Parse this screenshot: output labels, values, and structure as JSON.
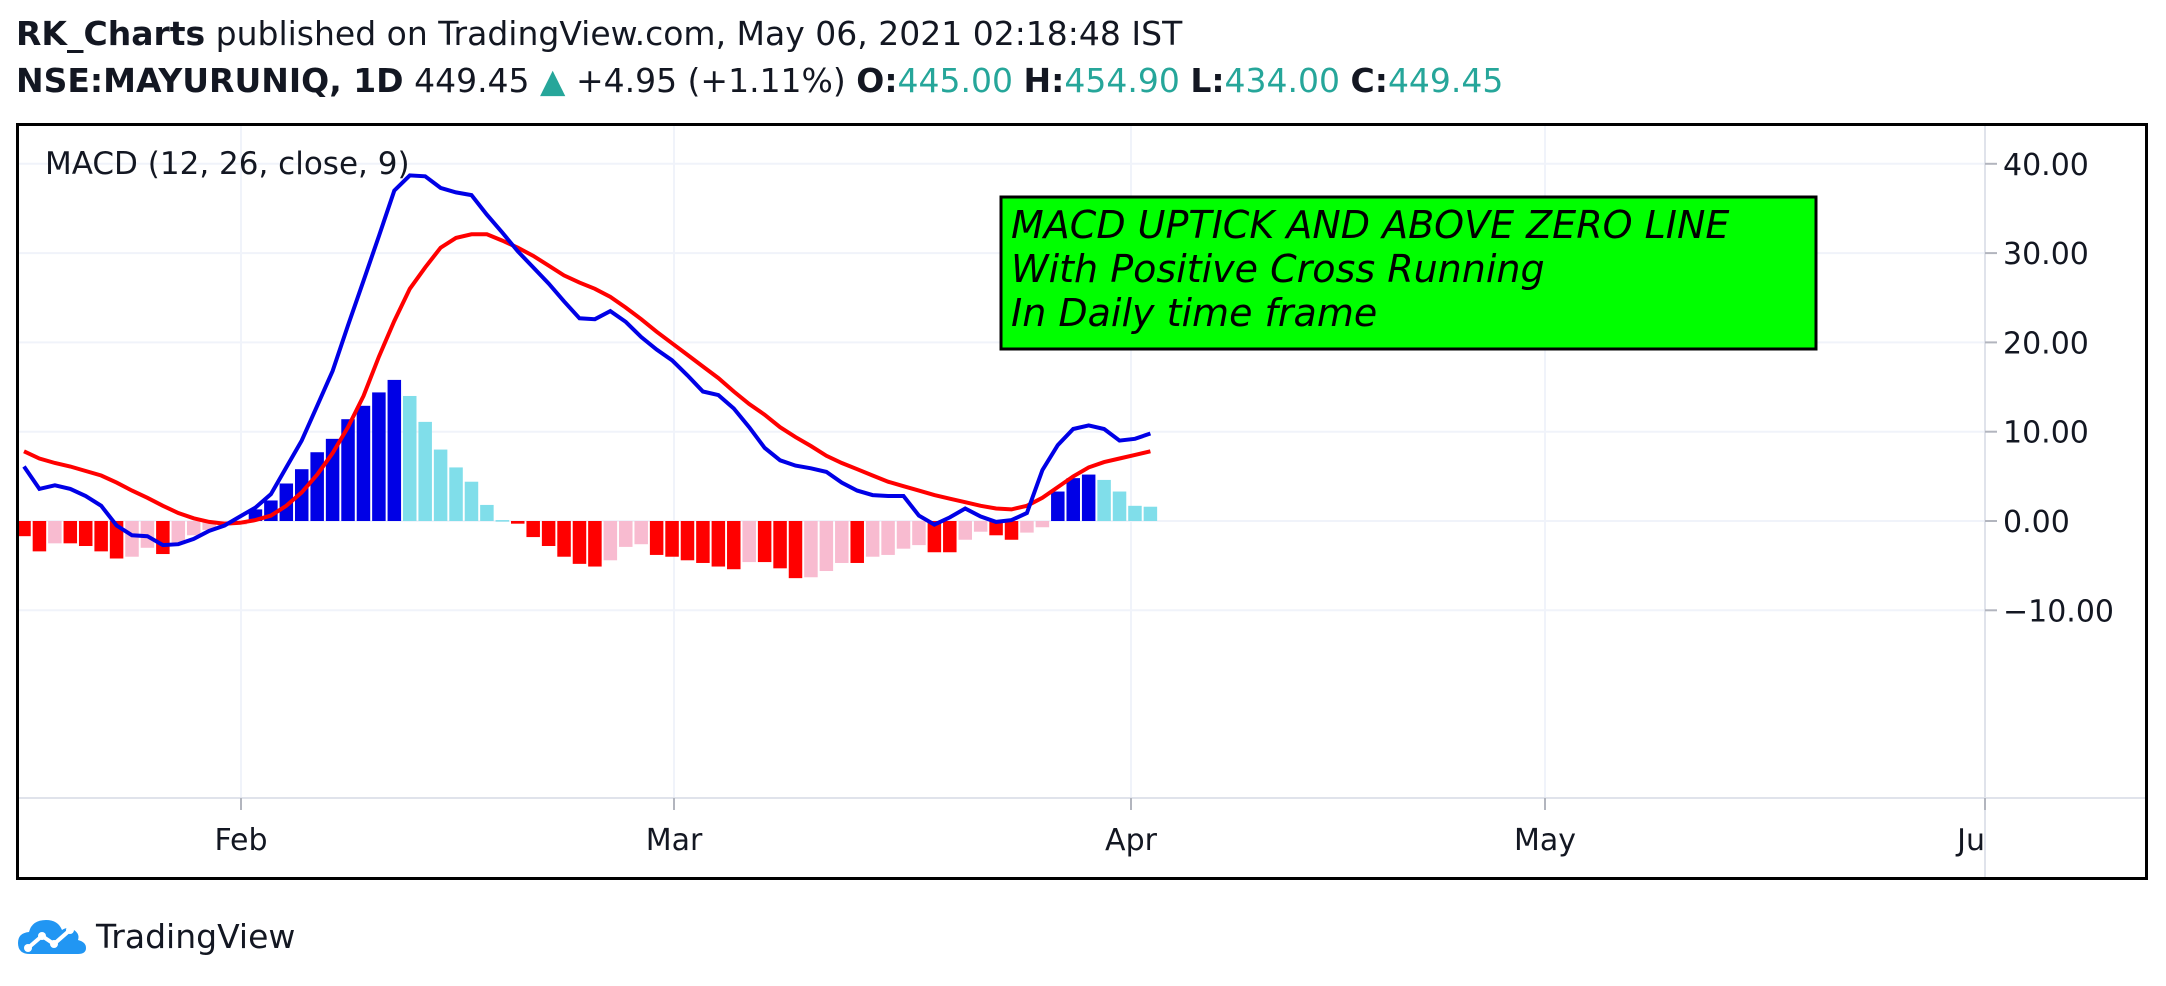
{
  "header": {
    "author": "RK_Charts",
    "published": "published on TradingView.com, May 06, 2021 02:18:48 IST",
    "symbol": "NSE:MAYURUNIQ, 1D",
    "price": "449.45",
    "change": "+4.95 (+1.11%)",
    "o_label": "O:",
    "o_value": "445.00",
    "h_label": "H:",
    "h_value": "454.90",
    "l_label": "L:",
    "l_value": "434.00",
    "c_label": "C:",
    "c_value": "449.45"
  },
  "indicator_label": "MACD (12, 26, close, 9)",
  "annotation": {
    "lines": [
      "MACD UPTICK AND ABOVE ZERO LINE",
      "With Positive Cross Running",
      "In Daily time frame"
    ],
    "background": "#00ff00"
  },
  "footer": {
    "brand": "TradingView"
  },
  "chart_data": {
    "type": "line",
    "x_labels": [
      "Feb",
      "Mar",
      "Apr",
      "May",
      "Ju"
    ],
    "y_ticks": [
      "40.00",
      "30.00",
      "20.00",
      "10.00",
      "0.00",
      "−10.00"
    ],
    "ylim": [
      -10,
      42
    ],
    "grid": true,
    "colors": {
      "macd": "#0000e6",
      "signal": "#ff0000",
      "hist_pos_rising": "#0000e6",
      "hist_pos_falling": "#80deea",
      "hist_neg_falling": "#ff0000",
      "hist_neg_rising": "#f8bbd0"
    },
    "series": [
      {
        "key": "macd",
        "values": [
          6.1,
          3.6,
          4.0,
          3.6,
          2.8,
          1.7,
          -0.5,
          -1.6,
          -1.7,
          -2.7,
          -2.6,
          -2.0,
          -1.1,
          -0.5,
          0.5,
          1.5,
          3.0,
          6.0,
          9.0,
          12.9,
          16.8,
          21.9,
          26.9,
          31.9,
          37.0,
          38.7,
          38.6,
          37.3,
          36.8,
          36.5,
          34.3,
          32.3,
          30.2,
          28.4,
          26.6,
          24.6,
          22.7,
          22.6,
          23.5,
          22.3,
          20.6,
          19.2,
          18.0,
          16.3,
          14.5,
          14.1,
          12.6,
          10.5,
          8.2,
          6.8,
          6.2,
          5.9,
          5.5,
          4.3,
          3.4,
          2.9,
          2.8,
          2.8,
          0.6,
          -0.4,
          0.4,
          1.4,
          0.5,
          -0.1,
          0.1,
          0.9,
          5.7,
          8.5,
          10.3,
          10.7,
          10.3,
          9.0,
          9.2,
          9.8
        ]
      },
      {
        "key": "signal",
        "values": [
          7.8,
          7.0,
          6.5,
          6.1,
          5.6,
          5.1,
          4.3,
          3.4,
          2.6,
          1.7,
          0.9,
          0.3,
          -0.1,
          -0.3,
          -0.2,
          0.1,
          0.6,
          1.7,
          3.2,
          5.2,
          7.6,
          10.5,
          14.0,
          18.4,
          22.4,
          26.0,
          28.4,
          30.6,
          31.7,
          32.1,
          32.1,
          31.4,
          30.6,
          29.7,
          28.6,
          27.5,
          26.7,
          26.0,
          25.1,
          23.9,
          22.6,
          21.2,
          19.9,
          18.6,
          17.3,
          16.0,
          14.5,
          13.1,
          11.9,
          10.5,
          9.4,
          8.4,
          7.3,
          6.5,
          5.8,
          5.1,
          4.4,
          3.9,
          3.4,
          2.9,
          2.5,
          2.1,
          1.7,
          1.4,
          1.3,
          1.7,
          2.6,
          3.8,
          5.0,
          6.0,
          6.6,
          7.0,
          7.4,
          7.8
        ]
      },
      {
        "key": "histogram",
        "values": [
          -1.7,
          -3.4,
          -2.5,
          -2.5,
          -2.8,
          -3.4,
          -4.2,
          -4.0,
          -3.0,
          -3.7,
          -2.6,
          -1.6,
          -1.0,
          -0.5,
          -0.4,
          1.3,
          2.3,
          4.2,
          5.8,
          7.7,
          9.2,
          11.4,
          12.9,
          14.4,
          15.8,
          14.0,
          11.1,
          8.0,
          6.0,
          4.4,
          1.8,
          0.1,
          -0.3,
          -1.8,
          -2.8,
          -4.0,
          -4.8,
          -5.1,
          -4.4,
          -2.9,
          -2.6,
          -3.8,
          -4.0,
          -4.4,
          -4.7,
          -5.1,
          -5.4,
          -4.6,
          -4.6,
          -5.3,
          -6.4,
          -6.3,
          -5.6,
          -4.7,
          -4.7,
          -4.0,
          -3.8,
          -3.1,
          -2.7,
          -3.5,
          -3.5,
          -2.1,
          -1.2,
          -1.6,
          -2.1,
          -1.3,
          -0.7,
          3.3,
          4.8,
          5.2,
          4.6,
          3.3,
          1.7,
          1.6
        ]
      }
    ]
  }
}
